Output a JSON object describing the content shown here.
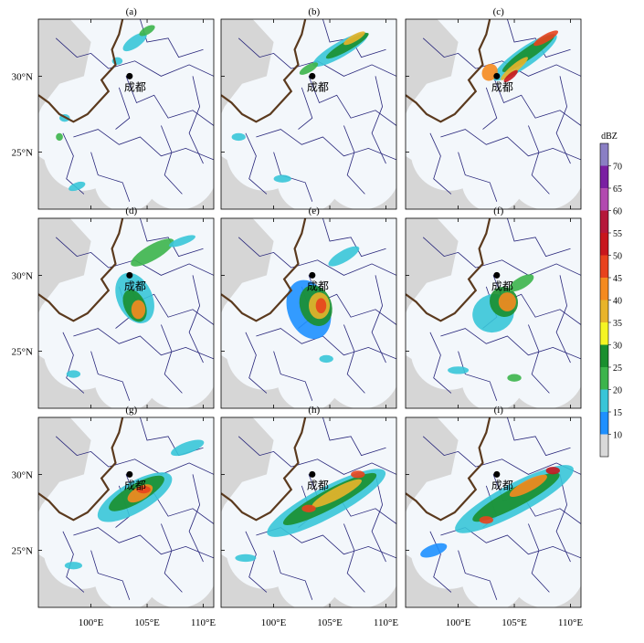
{
  "panel_labels": [
    "(a)",
    "(b)",
    "(c)",
    "(d)",
    "(e)",
    "(f)",
    "(g)",
    "(h)",
    "(i)"
  ],
  "city_label": "成都",
  "y_tick_labels": [
    "30°N",
    "25°N"
  ],
  "x_tick_labels": [
    "100°E",
    "105°E",
    "110°E"
  ],
  "colorbar": {
    "unit": "dBZ",
    "levels": [
      "10",
      "15",
      "20",
      "25",
      "30",
      "35",
      "40",
      "45",
      "50",
      "55",
      "60",
      "65",
      "70"
    ],
    "colors": [
      "#d9d9d9",
      "#1e90ff",
      "#39c5d8",
      "#3cb44b",
      "#1a8f2e",
      "#f5f523",
      "#e8b42a",
      "#f58a1f",
      "#e8421d",
      "#c8161d",
      "#b5173a",
      "#b24ab0",
      "#7a1fa2",
      "#8a7fc4"
    ]
  },
  "colors": {
    "background_no_data": "#d6d6d6",
    "radar_coverage": "#f3f7fb",
    "province_border": "#27257a",
    "plateau_boundary": "#5b3a1e",
    "city_marker": "#000000"
  }
}
